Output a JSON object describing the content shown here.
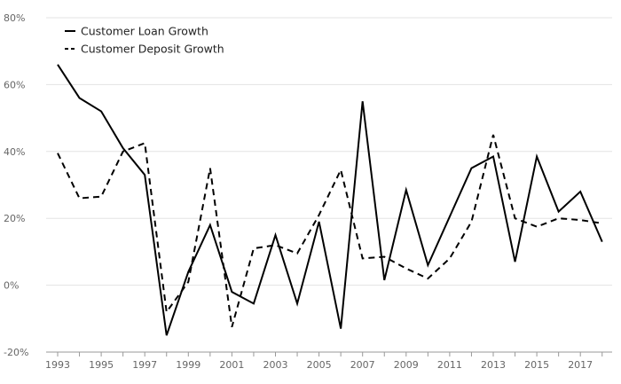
{
  "chart_data": {
    "type": "line",
    "title": "",
    "xlabel": "",
    "ylabel": "",
    "x": [
      1993,
      1994,
      1995,
      1996,
      1997,
      1998,
      1999,
      2000,
      2001,
      2002,
      2003,
      2004,
      2005,
      2006,
      2007,
      2008,
      2009,
      2010,
      2011,
      2012,
      2013,
      2014,
      2015,
      2016,
      2017,
      2018
    ],
    "x_tick_labels": [
      "1993",
      "1995",
      "1997",
      "1999",
      "2001",
      "2003",
      "2005",
      "2007",
      "2009",
      "2011",
      "2013",
      "2015",
      "2017"
    ],
    "ylim": [
      -20,
      80
    ],
    "y_ticks": [
      -20,
      0,
      20,
      40,
      60,
      80
    ],
    "y_tick_labels": [
      "-20%",
      "0%",
      "20%",
      "40%",
      "60%",
      "80%"
    ],
    "grid": true,
    "legend_position": "top-left",
    "series": [
      {
        "name": "Customer Loan Growth",
        "dash": "solid",
        "color": "#000000",
        "values": [
          66,
          56,
          52,
          41,
          33,
          -15,
          4,
          18,
          -2,
          -5.5,
          15,
          -5.5,
          19,
          -13,
          55,
          1.5,
          28.5,
          6,
          20.5,
          35,
          38.5,
          7,
          38.5,
          22,
          28,
          13
        ]
      },
      {
        "name": "Customer Deposit Growth",
        "dash": "dashed",
        "color": "#000000",
        "values": [
          39.5,
          26,
          26.5,
          40,
          42.5,
          -8,
          1,
          35,
          -12.5,
          11,
          12,
          9.5,
          21,
          34.5,
          8,
          8.5,
          5,
          2,
          8,
          19,
          45,
          20,
          17.5,
          20,
          19.5,
          18.5
        ]
      }
    ]
  }
}
